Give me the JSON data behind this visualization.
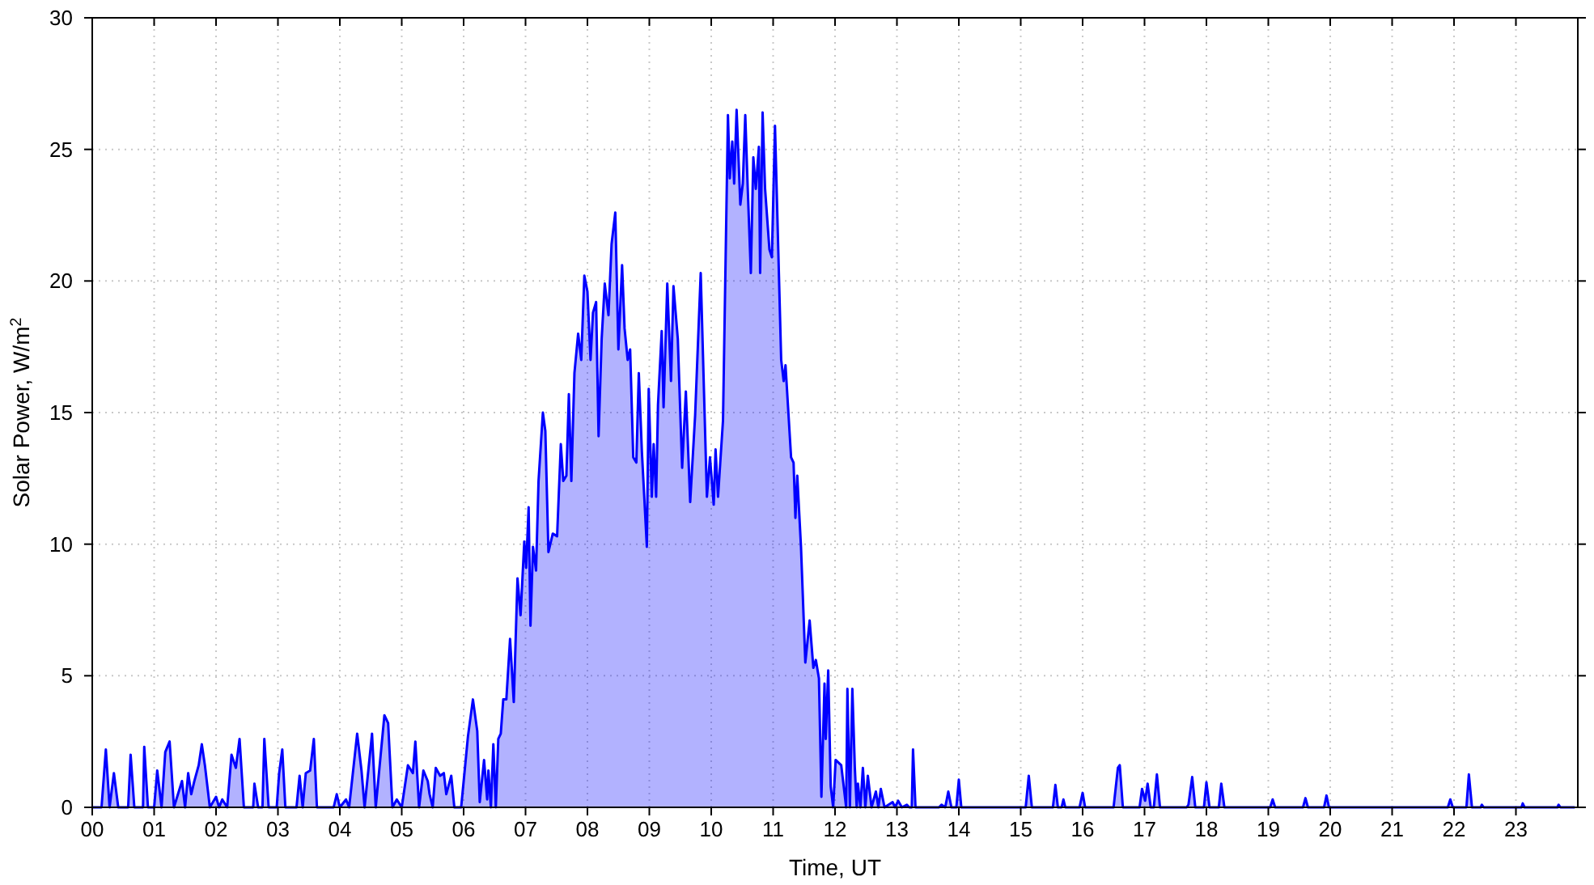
{
  "chart_data": {
    "type": "area",
    "xlabel": "Time, UT",
    "ylabel": "Solar Power, W/m$^{2}$",
    "xlim": [
      0,
      24
    ],
    "ylim": [
      0,
      30
    ],
    "xticks": [
      {
        "value": 0,
        "label": "00"
      },
      {
        "value": 1,
        "label": "01"
      },
      {
        "value": 2,
        "label": "02"
      },
      {
        "value": 3,
        "label": "03"
      },
      {
        "value": 4,
        "label": "04"
      },
      {
        "value": 5,
        "label": "05"
      },
      {
        "value": 6,
        "label": "06"
      },
      {
        "value": 7,
        "label": "07"
      },
      {
        "value": 8,
        "label": "08"
      },
      {
        "value": 9,
        "label": "09"
      },
      {
        "value": 10,
        "label": "10"
      },
      {
        "value": 11,
        "label": "11"
      },
      {
        "value": 12,
        "label": "12"
      },
      {
        "value": 13,
        "label": "13"
      },
      {
        "value": 14,
        "label": "14"
      },
      {
        "value": 15,
        "label": "15"
      },
      {
        "value": 16,
        "label": "16"
      },
      {
        "value": 17,
        "label": "17"
      },
      {
        "value": 18,
        "label": "18"
      },
      {
        "value": 19,
        "label": "19"
      },
      {
        "value": 20,
        "label": "20"
      },
      {
        "value": 21,
        "label": "21"
      },
      {
        "value": 22,
        "label": "22"
      },
      {
        "value": 23,
        "label": "23"
      }
    ],
    "yticks": [
      0,
      5,
      10,
      15,
      20,
      25,
      30
    ],
    "grid": true,
    "series": [
      {
        "color": "#0000ff",
        "x": [
          0,
          0.15,
          0.22,
          0.28,
          0.35,
          0.42,
          0.58,
          0.62,
          0.68,
          0.82,
          0.84,
          0.9,
          1.0,
          1.05,
          1.12,
          1.18,
          1.25,
          1.32,
          1.45,
          1.5,
          1.55,
          1.6,
          1.65,
          1.72,
          1.77,
          1.82,
          1.9,
          2.0,
          2.05,
          2.1,
          2.18,
          2.25,
          2.32,
          2.38,
          2.45,
          2.6,
          2.62,
          2.68,
          2.75,
          2.78,
          2.85,
          2.98,
          3.02,
          3.07,
          3.12,
          3.3,
          3.35,
          3.4,
          3.45,
          3.52,
          3.58,
          3.63,
          3.9,
          3.95,
          4.0,
          4.1,
          4.15,
          4.28,
          4.35,
          4.4,
          4.52,
          4.58,
          4.72,
          4.78,
          4.85,
          4.92,
          5.0,
          5.1,
          5.18,
          5.22,
          5.28,
          5.35,
          5.42,
          5.45,
          5.5,
          5.55,
          5.62,
          5.68,
          5.72,
          5.8,
          5.85,
          5.96,
          6.07,
          6.15,
          6.22,
          6.26,
          6.33,
          6.38,
          6.4,
          6.44,
          6.48,
          6.52,
          6.56,
          6.6,
          6.64,
          6.69,
          6.75,
          6.81,
          6.87,
          6.92,
          6.98,
          7.01,
          7.05,
          7.08,
          7.12,
          7.17,
          7.21,
          7.28,
          7.32,
          7.37,
          7.44,
          7.51,
          7.57,
          7.61,
          7.66,
          7.7,
          7.74,
          7.79,
          7.85,
          7.9,
          7.95,
          8.0,
          8.05,
          8.09,
          8.14,
          8.18,
          8.23,
          8.28,
          8.34,
          8.39,
          8.45,
          8.5,
          8.56,
          8.6,
          8.65,
          8.69,
          8.74,
          8.79,
          8.83,
          8.88,
          8.96,
          8.99,
          9.04,
          9.07,
          9.11,
          9.14,
          9.2,
          9.23,
          9.29,
          9.35,
          9.39,
          9.46,
          9.53,
          9.59,
          9.66,
          9.74,
          9.83,
          9.93,
          9.98,
          10.04,
          10.07,
          10.11,
          10.19,
          10.27,
          10.3,
          10.34,
          10.37,
          10.41,
          10.47,
          10.51,
          10.55,
          10.59,
          10.64,
          10.68,
          10.72,
          10.77,
          10.79,
          10.83,
          10.87,
          10.94,
          10.98,
          11.03,
          11.13,
          11.17,
          11.2,
          11.29,
          11.33,
          11.36,
          11.39,
          11.45,
          11.52,
          11.59,
          11.65,
          11.69,
          11.74,
          11.78,
          11.83,
          11.85,
          11.89,
          11.93,
          11.97,
          12.01,
          12.1,
          12.18,
          12.2,
          12.24,
          12.28,
          12.32,
          12.35,
          12.37,
          12.41,
          12.45,
          12.49,
          12.53,
          12.59,
          12.66,
          12.7,
          12.74,
          12.8,
          12.93,
          12.97,
          13.02,
          13.08,
          13.16,
          13.2,
          13.24,
          13.26,
          13.3,
          13.68,
          13.72,
          13.78,
          13.83,
          13.88,
          13.96,
          14.0,
          14.04,
          15.08,
          15.13,
          15.18,
          15.52,
          15.56,
          15.6,
          15.66,
          15.69,
          15.72,
          15.95,
          16.0,
          16.04,
          16.5,
          16.57,
          16.6,
          16.65,
          16.92,
          16.96,
          17.01,
          17.05,
          17.1,
          17.15,
          17.2,
          17.25,
          17.68,
          17.71,
          17.77,
          17.82,
          17.96,
          18.0,
          18.05,
          18.2,
          18.24,
          18.29,
          19.03,
          19.07,
          19.11,
          19.56,
          19.6,
          19.64,
          19.9,
          19.94,
          19.98,
          21.9,
          21.94,
          21.98,
          22.2,
          22.24,
          22.29,
          22.43,
          22.45,
          22.48,
          23.09,
          23.11,
          23.14,
          23.67,
          23.69,
          23.72,
          23.95
        ],
        "values": [
          0,
          0,
          2.2,
          0,
          1.3,
          0,
          0,
          2.0,
          0,
          0,
          2.3,
          0,
          0,
          1.4,
          0,
          2.1,
          2.5,
          0,
          1.0,
          0,
          1.3,
          0.5,
          1.0,
          1.6,
          2.4,
          1.6,
          0,
          0.4,
          0,
          0.3,
          0,
          2.0,
          1.5,
          2.6,
          0,
          0,
          0.9,
          0,
          0,
          2.6,
          0,
          0,
          1.3,
          2.2,
          0,
          0,
          1.2,
          0,
          1.3,
          1.4,
          2.6,
          0,
          0,
          0.5,
          0,
          0.3,
          0,
          2.8,
          1.4,
          0,
          2.8,
          0,
          3.5,
          3.2,
          0,
          0.3,
          0,
          1.6,
          1.3,
          2.5,
          0,
          1.4,
          1.0,
          0.5,
          0,
          1.5,
          1.2,
          1.3,
          0.5,
          1.2,
          0,
          0,
          2.7,
          4.1,
          2.9,
          0.2,
          1.8,
          0.3,
          1.4,
          0,
          2.4,
          0,
          2.6,
          2.8,
          4.1,
          4.1,
          6.4,
          4.0,
          8.7,
          7.3,
          10.1,
          9.1,
          11.4,
          6.9,
          9.9,
          9.0,
          12.4,
          15.0,
          14.3,
          9.7,
          10.4,
          10.3,
          13.8,
          12.4,
          12.6,
          15.7,
          12.4,
          16.5,
          18.0,
          17.0,
          20.2,
          19.6,
          17.0,
          18.8,
          19.2,
          14.1,
          17.8,
          19.9,
          18.7,
          21.4,
          22.6,
          17.4,
          20.6,
          18.2,
          17.0,
          17.4,
          13.3,
          13.1,
          16.5,
          13.5,
          9.9,
          15.9,
          11.8,
          13.8,
          11.8,
          15.3,
          18.1,
          15.2,
          19.9,
          16.2,
          19.8,
          17.8,
          12.9,
          15.8,
          11.6,
          14.9,
          20.3,
          11.8,
          13.3,
          11.5,
          13.6,
          11.8,
          14.7,
          26.3,
          23.9,
          25.3,
          23.7,
          26.5,
          22.9,
          23.7,
          26.3,
          23.5,
          20.3,
          24.7,
          23.5,
          25.1,
          20.3,
          26.4,
          23.5,
          21.2,
          20.9,
          25.9,
          17.0,
          16.2,
          16.8,
          13.3,
          13.1,
          11.0,
          12.6,
          9.9,
          5.5,
          7.1,
          5.3,
          5.6,
          4.9,
          0.4,
          4.7,
          2.6,
          5.2,
          0.8,
          0,
          1.8,
          1.6,
          0,
          4.5,
          0,
          4.5,
          1.5,
          0,
          0.9,
          0,
          1.5,
          0,
          1.2,
          0,
          0.6,
          0,
          0.7,
          0,
          0.2,
          0,
          0.25,
          0,
          0.1,
          0,
          0,
          2.2,
          0,
          0,
          0.1,
          0,
          0.6,
          0,
          0,
          1.05,
          0,
          0,
          1.2,
          0,
          0,
          0.85,
          0,
          0,
          0.3,
          0,
          0,
          0.55,
          0,
          0,
          1.5,
          1.6,
          0,
          0,
          0.7,
          0.25,
          0.9,
          0,
          0,
          1.25,
          0,
          0,
          0.1,
          1.15,
          0,
          0,
          0.95,
          0,
          0,
          0.9,
          0,
          0,
          0.3,
          0,
          0,
          0.35,
          0,
          0,
          0.45,
          0,
          0,
          0.3,
          0,
          0,
          1.25,
          0,
          0,
          0.1,
          0,
          0,
          0.15,
          0,
          0,
          0.1,
          0,
          0
        ]
      }
    ]
  }
}
